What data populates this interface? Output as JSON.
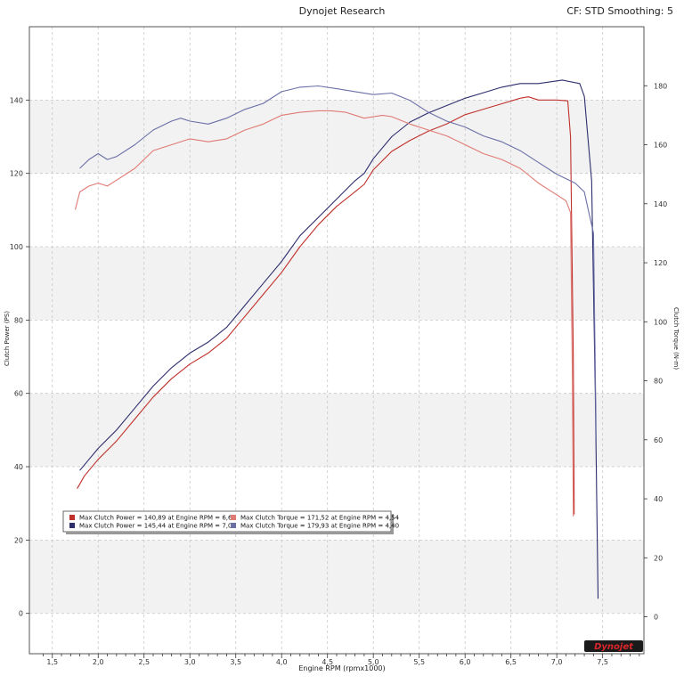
{
  "header": {
    "title": "Dynojet Research",
    "right_info": "CF: STD Smoothing: 5"
  },
  "logo_text": "Dynojet",
  "chart_data": {
    "type": "line",
    "xlabel": "Engine RPM (rpmx1000)",
    "ylabel_left": "Clutch Power (PS)",
    "ylabel_right": "Clutch Torque (N-m)",
    "xlim": [
      1.25,
      7.95
    ],
    "ylim_left": [
      -11,
      160
    ],
    "ylim_right": [
      -12.5,
      200
    ],
    "x_ticks": [
      "1,5",
      "2,0",
      "2,5",
      "3,0",
      "3,5",
      "4,0",
      "4,5",
      "5,0",
      "5,5",
      "6,0",
      "6,5",
      "7,0",
      "7,5"
    ],
    "y_ticks_left": [
      "0",
      "20",
      "40",
      "60",
      "80",
      "100",
      "120",
      "140"
    ],
    "y_ticks_right": [
      "0",
      "20",
      "40",
      "60",
      "80",
      "100",
      "120",
      "140",
      "160",
      "180"
    ],
    "grid": true,
    "legend_position": "bottom-left",
    "series": [
      {
        "name": "Max Clutch Power = 140,89 at Engine RPM = 6,69",
        "axis": "left",
        "color": "#c0302a",
        "points": [
          [
            1.77,
            34
          ],
          [
            1.85,
            37.5
          ],
          [
            2.0,
            42
          ],
          [
            2.2,
            47
          ],
          [
            2.4,
            53
          ],
          [
            2.6,
            59
          ],
          [
            2.8,
            64
          ],
          [
            3.0,
            68
          ],
          [
            3.2,
            71
          ],
          [
            3.4,
            75
          ],
          [
            3.6,
            81
          ],
          [
            3.8,
            87
          ],
          [
            4.0,
            93
          ],
          [
            4.2,
            100
          ],
          [
            4.4,
            106
          ],
          [
            4.6,
            111
          ],
          [
            4.8,
            115
          ],
          [
            4.9,
            117
          ],
          [
            5.0,
            121
          ],
          [
            5.2,
            126
          ],
          [
            5.4,
            129
          ],
          [
            5.6,
            131.5
          ],
          [
            5.8,
            133.5
          ],
          [
            6.0,
            136
          ],
          [
            6.2,
            137.5
          ],
          [
            6.4,
            139
          ],
          [
            6.6,
            140.5
          ],
          [
            6.69,
            140.89
          ],
          [
            6.8,
            140
          ],
          [
            7.0,
            140
          ],
          [
            7.12,
            139.8
          ],
          [
            7.15,
            130
          ],
          [
            7.18,
            70
          ],
          [
            7.19,
            27
          ]
        ]
      },
      {
        "name": "Max Clutch Power = 145,44 at Engine RPM = 7,06",
        "axis": "left",
        "color": "#2e2e6e",
        "points": [
          [
            1.8,
            39
          ],
          [
            1.9,
            42
          ],
          [
            2.0,
            45
          ],
          [
            2.2,
            50
          ],
          [
            2.4,
            56
          ],
          [
            2.6,
            62
          ],
          [
            2.8,
            67
          ],
          [
            3.0,
            71
          ],
          [
            3.2,
            74
          ],
          [
            3.4,
            78
          ],
          [
            3.6,
            84
          ],
          [
            3.8,
            90
          ],
          [
            4.0,
            96
          ],
          [
            4.2,
            103
          ],
          [
            4.4,
            108
          ],
          [
            4.6,
            113
          ],
          [
            4.8,
            118
          ],
          [
            4.9,
            120
          ],
          [
            5.0,
            124
          ],
          [
            5.2,
            130
          ],
          [
            5.4,
            134
          ],
          [
            5.6,
            136.5
          ],
          [
            5.8,
            138.5
          ],
          [
            6.0,
            140.5
          ],
          [
            6.2,
            142
          ],
          [
            6.4,
            143.5
          ],
          [
            6.6,
            144.5
          ],
          [
            6.8,
            144.5
          ],
          [
            7.06,
            145.44
          ],
          [
            7.25,
            144.5
          ],
          [
            7.3,
            141
          ],
          [
            7.38,
            118
          ],
          [
            7.42,
            60
          ],
          [
            7.45,
            4
          ]
        ]
      },
      {
        "name": "Max Clutch Torque = 171,52 at Engine RPM = 4,54",
        "axis": "right",
        "color": "#e07a74",
        "points": [
          [
            1.75,
            138
          ],
          [
            1.8,
            144
          ],
          [
            1.9,
            146
          ],
          [
            2.0,
            147
          ],
          [
            2.1,
            146
          ],
          [
            2.2,
            148
          ],
          [
            2.4,
            152
          ],
          [
            2.6,
            158
          ],
          [
            2.8,
            160
          ],
          [
            3.0,
            162
          ],
          [
            3.2,
            161
          ],
          [
            3.4,
            162
          ],
          [
            3.6,
            165
          ],
          [
            3.8,
            167
          ],
          [
            4.0,
            170
          ],
          [
            4.2,
            171
          ],
          [
            4.4,
            171.5
          ],
          [
            4.54,
            171.52
          ],
          [
            4.7,
            171
          ],
          [
            4.9,
            169
          ],
          [
            5.1,
            170
          ],
          [
            5.2,
            169.5
          ],
          [
            5.4,
            167
          ],
          [
            5.6,
            165
          ],
          [
            5.8,
            163
          ],
          [
            6.0,
            160
          ],
          [
            6.2,
            157
          ],
          [
            6.4,
            155
          ],
          [
            6.6,
            152
          ],
          [
            6.8,
            147
          ],
          [
            7.0,
            143
          ],
          [
            7.1,
            141
          ],
          [
            7.15,
            137
          ],
          [
            7.17,
            80
          ],
          [
            7.18,
            34
          ]
        ]
      },
      {
        "name": "Max Clutch Torque = 179,93 at Engine RPM = 4,40",
        "axis": "right",
        "color": "#6a6fa6",
        "points": [
          [
            1.8,
            152
          ],
          [
            1.9,
            155
          ],
          [
            2.0,
            157
          ],
          [
            2.1,
            155
          ],
          [
            2.2,
            156
          ],
          [
            2.4,
            160
          ],
          [
            2.6,
            165
          ],
          [
            2.8,
            168
          ],
          [
            2.9,
            169
          ],
          [
            3.0,
            168
          ],
          [
            3.2,
            167
          ],
          [
            3.4,
            169
          ],
          [
            3.6,
            172
          ],
          [
            3.8,
            174
          ],
          [
            4.0,
            178
          ],
          [
            4.2,
            179.5
          ],
          [
            4.4,
            179.93
          ],
          [
            4.6,
            179
          ],
          [
            4.8,
            178
          ],
          [
            5.0,
            177
          ],
          [
            5.2,
            177.5
          ],
          [
            5.4,
            175
          ],
          [
            5.6,
            171
          ],
          [
            5.8,
            168
          ],
          [
            6.0,
            166
          ],
          [
            6.2,
            163
          ],
          [
            6.4,
            161
          ],
          [
            6.6,
            158
          ],
          [
            6.8,
            154
          ],
          [
            7.0,
            150
          ],
          [
            7.2,
            147
          ],
          [
            7.3,
            144
          ],
          [
            7.35,
            137
          ],
          [
            7.4,
            130
          ],
          [
            7.43,
            60
          ]
        ]
      }
    ]
  }
}
